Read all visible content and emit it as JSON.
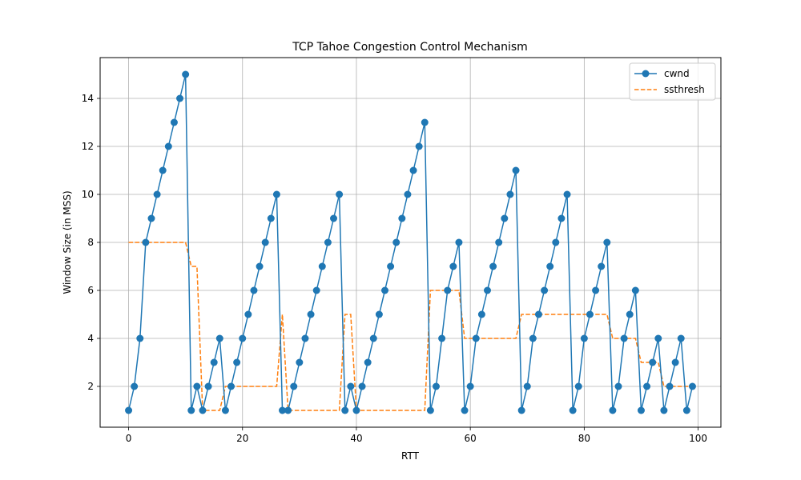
{
  "chart_data": {
    "type": "line",
    "title": "TCP Tahoe Congestion Control Mechanism",
    "xlabel": "RTT",
    "ylabel": "Window Size (in MSS)",
    "xlim": [
      -5,
      104
    ],
    "ylim": [
      0.3,
      15.7
    ],
    "xticks": [
      0,
      20,
      40,
      60,
      80,
      100
    ],
    "yticks": [
      2,
      4,
      6,
      8,
      10,
      12,
      14
    ],
    "grid": true,
    "legend_position": "top-right",
    "x": [
      0,
      1,
      2,
      3,
      4,
      5,
      6,
      7,
      8,
      9,
      10,
      11,
      12,
      13,
      14,
      15,
      16,
      17,
      18,
      19,
      20,
      21,
      22,
      23,
      24,
      25,
      26,
      27,
      28,
      29,
      30,
      31,
      32,
      33,
      34,
      35,
      36,
      37,
      38,
      39,
      40,
      41,
      42,
      43,
      44,
      45,
      46,
      47,
      48,
      49,
      50,
      51,
      52,
      53,
      54,
      55,
      56,
      57,
      58,
      59,
      60,
      61,
      62,
      63,
      64,
      65,
      66,
      67,
      68,
      69,
      70,
      71,
      72,
      73,
      74,
      75,
      76,
      77,
      78,
      79,
      80,
      81,
      82,
      83,
      84,
      85,
      86,
      87,
      88,
      89,
      90,
      91,
      92,
      93,
      94,
      95,
      96,
      97,
      98,
      99
    ],
    "series": [
      {
        "name": "cwnd",
        "color": "#1f77b4",
        "style": "solid-with-markers",
        "values": [
          1,
          2,
          4,
          8,
          9,
          10,
          11,
          12,
          13,
          14,
          15,
          1,
          2,
          1,
          2,
          3,
          4,
          1,
          2,
          3,
          4,
          5,
          6,
          7,
          8,
          9,
          10,
          1,
          1,
          2,
          3,
          4,
          5,
          6,
          7,
          8,
          9,
          10,
          1,
          2,
          1,
          2,
          3,
          4,
          5,
          6,
          7,
          8,
          9,
          10,
          11,
          12,
          13,
          1,
          2,
          4,
          6,
          7,
          8,
          1,
          2,
          4,
          5,
          6,
          7,
          8,
          9,
          10,
          11,
          1,
          2,
          4,
          5,
          6,
          7,
          8,
          9,
          10,
          1,
          2,
          4,
          5,
          6,
          7,
          8,
          1,
          2,
          4,
          5,
          6,
          1,
          2,
          3,
          4,
          1,
          2,
          3,
          4,
          1,
          2
        ]
      },
      {
        "name": "ssthresh",
        "color": "#ff7f0e",
        "style": "dashed",
        "values": [
          8,
          8,
          8,
          8,
          8,
          8,
          8,
          8,
          8,
          8,
          8,
          7,
          7,
          1,
          1,
          1,
          1,
          2,
          2,
          2,
          2,
          2,
          2,
          2,
          2,
          2,
          2,
          5,
          1,
          1,
          1,
          1,
          1,
          1,
          1,
          1,
          1,
          1,
          5,
          5,
          1,
          1,
          1,
          1,
          1,
          1,
          1,
          1,
          1,
          1,
          1,
          1,
          1,
          6,
          6,
          6,
          6,
          6,
          6,
          4,
          4,
          4,
          4,
          4,
          4,
          4,
          4,
          4,
          4,
          5,
          5,
          5,
          5,
          5,
          5,
          5,
          5,
          5,
          5,
          5,
          5,
          5,
          5,
          5,
          5,
          4,
          4,
          4,
          4,
          4,
          3,
          3,
          3,
          3,
          2,
          2,
          2,
          2,
          2,
          2
        ]
      }
    ]
  }
}
